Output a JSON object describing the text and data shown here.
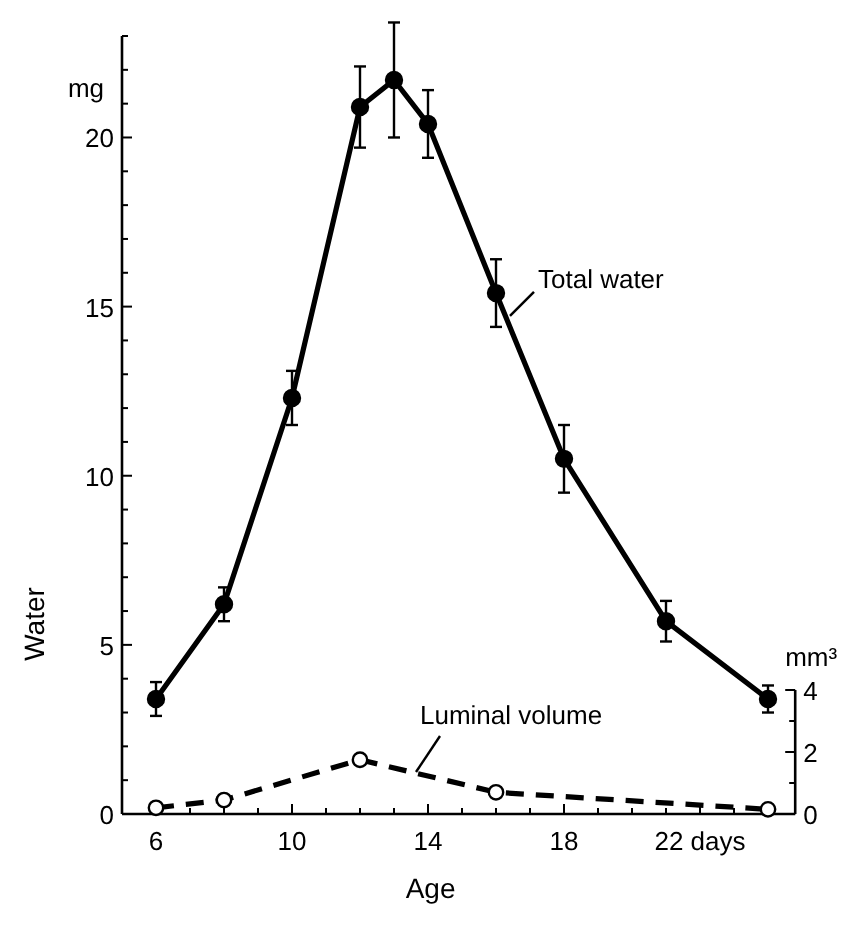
{
  "chart_data": {
    "type": "line",
    "xlabel": "Age",
    "ylabel": "Water",
    "y2label": "mm³",
    "annotations": [
      "mg"
    ],
    "xlim": [
      5,
      24.8
    ],
    "xticks": [
      {
        "value": 5,
        "label": null
      },
      {
        "value": 6,
        "label": "6"
      },
      {
        "value": 7,
        "label": null
      },
      {
        "value": 8,
        "label": null
      },
      {
        "value": 9,
        "label": null
      },
      {
        "value": 10,
        "label": "10"
      },
      {
        "value": 11,
        "label": null
      },
      {
        "value": 12,
        "label": null
      },
      {
        "value": 13,
        "label": null
      },
      {
        "value": 14,
        "label": "14"
      },
      {
        "value": 15,
        "label": null
      },
      {
        "value": 16,
        "label": null
      },
      {
        "value": 17,
        "label": null
      },
      {
        "value": 18,
        "label": "18"
      },
      {
        "value": 19,
        "label": null
      },
      {
        "value": 20,
        "label": null
      },
      {
        "value": 21,
        "label": null
      },
      {
        "value": 22,
        "label": "22 days"
      },
      {
        "value": 23,
        "label": null
      },
      {
        "value": 24,
        "label": null
      }
    ],
    "ylim": [
      0,
      23
    ],
    "yticks": [
      0,
      {
        "value": 1,
        "label": null
      },
      {
        "value": 2,
        "label": null
      },
      {
        "value": 3,
        "label": null
      },
      {
        "value": 4,
        "label": null
      },
      5,
      {
        "value": 6,
        "label": null
      },
      {
        "value": 7,
        "label": null
      },
      {
        "value": 8,
        "label": null
      },
      {
        "value": 9,
        "label": null
      },
      10,
      {
        "value": 11,
        "label": null
      },
      {
        "value": 12,
        "label": null
      },
      {
        "value": 13,
        "label": null
      },
      {
        "value": 14,
        "label": null
      },
      15,
      {
        "value": 16,
        "label": null
      },
      {
        "value": 17,
        "label": null
      },
      {
        "value": 18,
        "label": null
      },
      {
        "value": 19,
        "label": null
      },
      20,
      {
        "value": 21,
        "label": null
      },
      {
        "value": 22,
        "label": null
      },
      {
        "value": 23,
        "label": null
      }
    ],
    "y2lim": [
      0,
      25.1
    ],
    "y2ticks": [
      0,
      {
        "value": 1,
        "label": null
      },
      2,
      {
        "value": 3,
        "label": null
      },
      4
    ],
    "marker": "circle",
    "series": [
      {
        "name": "Total water",
        "color": "#000000",
        "line_style": "solid",
        "x": [
          6,
          8,
          10,
          12,
          13,
          14,
          16,
          18,
          21,
          24
        ],
        "values": [
          3.4,
          6.2,
          12.3,
          20.9,
          21.7,
          20.4,
          15.4,
          10.5,
          5.7,
          3.4
        ],
        "errors": [
          0.5,
          0.5,
          0.8,
          1.2,
          1.7,
          1.0,
          1.0,
          1.0,
          0.6,
          0.4
        ]
      },
      {
        "name": "Luminal volume",
        "color": "#000000",
        "line_style": "dashed",
        "axis": "y2",
        "x": [
          6,
          8,
          12,
          16,
          24
        ],
        "values": [
          0.2,
          0.45,
          1.75,
          0.7,
          0.15
        ]
      }
    ]
  }
}
